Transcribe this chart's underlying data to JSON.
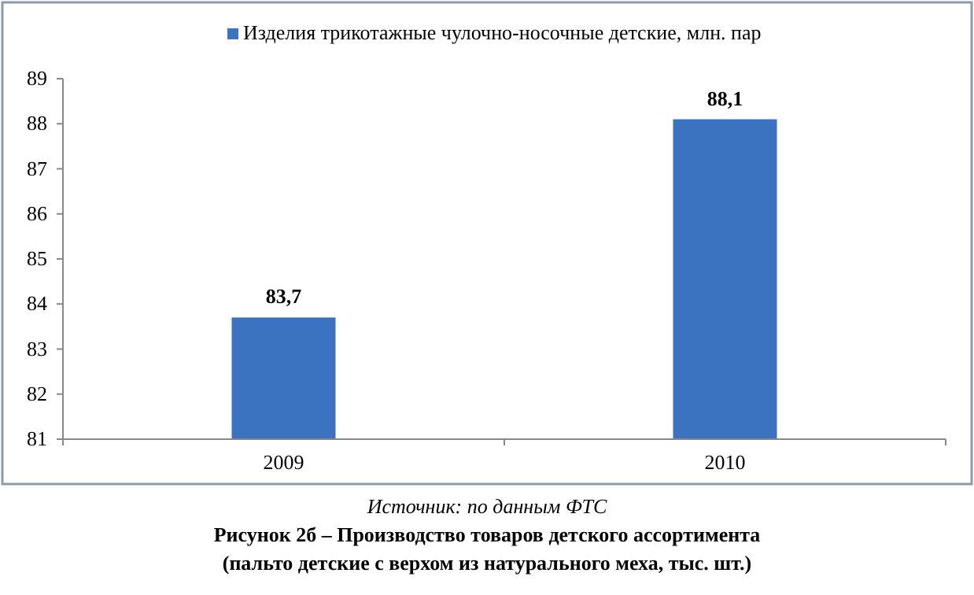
{
  "chart_data": {
    "type": "bar",
    "categories": [
      "2009",
      "2010"
    ],
    "series": [
      {
        "name": "Изделия трикотажные чулочно-носочные детские, млн. пар",
        "color": "#3b73c0",
        "values": [
          83.7,
          88.1
        ]
      }
    ],
    "value_labels": [
      "83,7",
      "88,1"
    ],
    "ylim": [
      81,
      89
    ],
    "yticks": [
      81,
      82,
      83,
      84,
      85,
      86,
      87,
      88,
      89
    ],
    "grid": false,
    "legend": "top",
    "annotations": [
      "Источник: по данным ФТС",
      "Рисунок 2б – Производство товаров детского ассортимента",
      "(пальто детские с верхом из натурального меха, тыс. шт.)"
    ]
  }
}
